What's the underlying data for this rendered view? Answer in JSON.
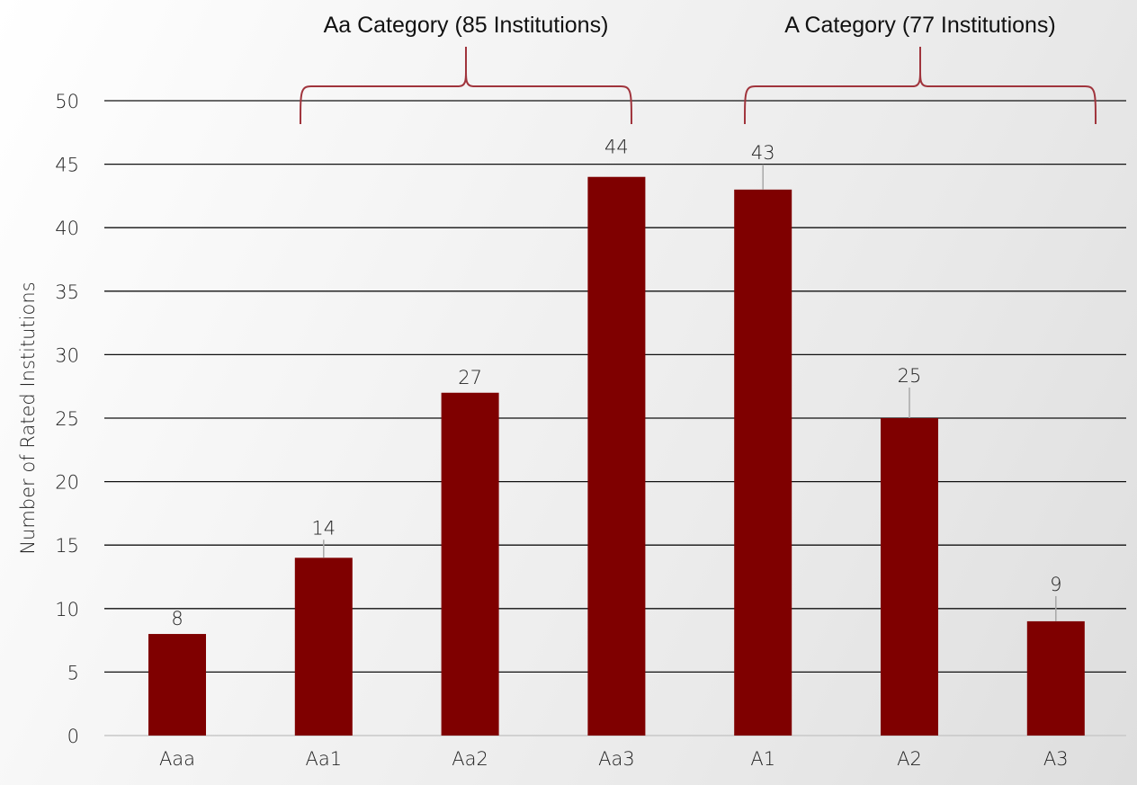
{
  "chart_data": {
    "type": "bar",
    "categories": [
      "Aaa",
      "Aa1",
      "Aa2",
      "Aa3",
      "A1",
      "A2",
      "A3"
    ],
    "values": [
      8,
      14,
      27,
      44,
      43,
      25,
      9
    ],
    "data_labels": [
      "8",
      "14",
      "27",
      "44",
      "43",
      "25",
      "9"
    ],
    "title": "",
    "xlabel": "",
    "ylabel": "Number of Rated Institutions",
    "ylim": [
      0,
      50
    ],
    "yticks": [
      0,
      5,
      10,
      15,
      20,
      25,
      30,
      35,
      40,
      45,
      50
    ],
    "grid": true,
    "legend": "none",
    "bar_color": "#7f0000",
    "bracket_color": "#a0343c",
    "groups": [
      {
        "label": "Aa Category (85 Institutions)",
        "categories": [
          "Aa1",
          "Aa2",
          "Aa3"
        ]
      },
      {
        "label": "A Category (77 Institutions)",
        "categories": [
          "A1",
          "A2",
          "A3"
        ]
      }
    ]
  }
}
